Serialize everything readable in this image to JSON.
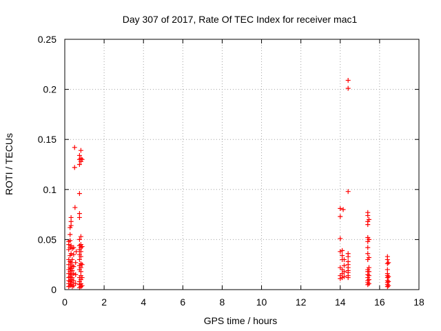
{
  "chart_data": {
    "type": "scatter",
    "title": "Day 307 of 2017, Rate Of TEC Index for receiver mac1",
    "xlabel": "GPS time / hours",
    "ylabel": "ROTI / TECUs",
    "xlim": [
      0,
      18
    ],
    "ylim": [
      0,
      0.25
    ],
    "xticks": [
      0,
      2,
      4,
      6,
      8,
      10,
      12,
      14,
      16,
      18
    ],
    "yticks": [
      0,
      0.05,
      0.1,
      0.15,
      0.2,
      0.25
    ],
    "xtick_labels": [
      "0",
      "2",
      "4",
      "6",
      "8",
      "10",
      "12",
      "14",
      "16",
      "18"
    ],
    "ytick_labels": [
      "0",
      "0.05",
      "0.1",
      "0.15",
      "0.2",
      "0.25"
    ],
    "grid": true,
    "marker": "plus",
    "color": "#ff0000",
    "series": [
      {
        "points": [
          [
            0.2,
            0.003
          ],
          [
            0.2,
            0.006
          ],
          [
            0.2,
            0.009
          ],
          [
            0.2,
            0.012
          ],
          [
            0.2,
            0.016
          ],
          [
            0.2,
            0.02
          ],
          [
            0.2,
            0.025
          ],
          [
            0.2,
            0.03
          ],
          [
            0.2,
            0.04
          ],
          [
            0.2,
            0.045
          ],
          [
            0.2,
            0.048
          ],
          [
            0.27,
            0.004
          ],
          [
            0.27,
            0.008
          ],
          [
            0.27,
            0.013
          ],
          [
            0.27,
            0.018
          ],
          [
            0.27,
            0.022
          ],
          [
            0.27,
            0.028
          ],
          [
            0.27,
            0.034
          ],
          [
            0.27,
            0.042
          ],
          [
            0.27,
            0.049
          ],
          [
            0.27,
            0.055
          ],
          [
            0.27,
            0.062
          ],
          [
            0.32,
            0.005
          ],
          [
            0.32,
            0.01
          ],
          [
            0.32,
            0.015
          ],
          [
            0.32,
            0.021
          ],
          [
            0.32,
            0.027
          ],
          [
            0.32,
            0.036
          ],
          [
            0.32,
            0.044
          ],
          [
            0.32,
            0.064
          ],
          [
            0.32,
            0.068
          ],
          [
            0.32,
            0.072
          ],
          [
            0.38,
            0.003
          ],
          [
            0.38,
            0.007
          ],
          [
            0.38,
            0.012
          ],
          [
            0.38,
            0.019
          ],
          [
            0.38,
            0.024
          ],
          [
            0.38,
            0.03
          ],
          [
            0.38,
            0.041
          ],
          [
            0.45,
            0.004
          ],
          [
            0.45,
            0.009
          ],
          [
            0.45,
            0.016
          ],
          [
            0.45,
            0.023
          ],
          [
            0.45,
            0.035
          ],
          [
            0.45,
            0.042
          ],
          [
            0.5,
            0.142
          ],
          [
            0.5,
            0.122
          ],
          [
            0.52,
            0.082
          ],
          [
            0.55,
            0.006
          ],
          [
            0.55,
            0.015
          ],
          [
            0.55,
            0.027
          ],
          [
            0.58,
            0.038
          ],
          [
            0.75,
            0.002
          ],
          [
            0.75,
            0.005
          ],
          [
            0.75,
            0.008
          ],
          [
            0.75,
            0.012
          ],
          [
            0.75,
            0.02
          ],
          [
            0.75,
            0.024
          ],
          [
            0.75,
            0.03
          ],
          [
            0.75,
            0.035
          ],
          [
            0.75,
            0.04
          ],
          [
            0.75,
            0.044
          ],
          [
            0.75,
            0.05
          ],
          [
            0.75,
            0.072
          ],
          [
            0.75,
            0.076
          ],
          [
            0.75,
            0.096
          ],
          [
            0.75,
            0.125
          ],
          [
            0.75,
            0.13
          ],
          [
            0.75,
            0.134
          ],
          [
            0.82,
            0.003
          ],
          [
            0.82,
            0.006
          ],
          [
            0.82,
            0.01
          ],
          [
            0.82,
            0.014
          ],
          [
            0.82,
            0.018
          ],
          [
            0.82,
            0.022
          ],
          [
            0.82,
            0.026
          ],
          [
            0.82,
            0.033
          ],
          [
            0.82,
            0.038
          ],
          [
            0.82,
            0.042
          ],
          [
            0.82,
            0.045
          ],
          [
            0.82,
            0.053
          ],
          [
            0.82,
            0.128
          ],
          [
            0.82,
            0.131
          ],
          [
            0.82,
            0.139
          ],
          [
            0.88,
            0.004
          ],
          [
            0.88,
            0.012
          ],
          [
            0.88,
            0.025
          ],
          [
            0.88,
            0.043
          ],
          [
            0.88,
            0.13
          ],
          [
            14.0,
            0.011
          ],
          [
            14.0,
            0.014
          ],
          [
            14.0,
            0.022
          ],
          [
            14.0,
            0.038
          ],
          [
            14.0,
            0.051
          ],
          [
            14.0,
            0.073
          ],
          [
            14.0,
            0.081
          ],
          [
            14.1,
            0.012
          ],
          [
            14.1,
            0.016
          ],
          [
            14.1,
            0.02
          ],
          [
            14.1,
            0.03
          ],
          [
            14.1,
            0.034
          ],
          [
            14.1,
            0.039
          ],
          [
            14.15,
            0.08
          ],
          [
            14.2,
            0.013
          ],
          [
            14.2,
            0.018
          ],
          [
            14.2,
            0.024
          ],
          [
            14.2,
            0.03
          ],
          [
            14.4,
            0.012
          ],
          [
            14.4,
            0.014
          ],
          [
            14.4,
            0.017
          ],
          [
            14.4,
            0.019
          ],
          [
            14.4,
            0.022
          ],
          [
            14.4,
            0.025
          ],
          [
            14.4,
            0.028
          ],
          [
            14.4,
            0.033
          ],
          [
            14.4,
            0.036
          ],
          [
            14.4,
            0.098
          ],
          [
            14.4,
            0.201
          ],
          [
            14.4,
            0.209
          ],
          [
            15.4,
            0.005
          ],
          [
            15.4,
            0.007
          ],
          [
            15.4,
            0.009
          ],
          [
            15.4,
            0.012
          ],
          [
            15.4,
            0.015
          ],
          [
            15.4,
            0.018
          ],
          [
            15.4,
            0.02
          ],
          [
            15.4,
            0.03
          ],
          [
            15.4,
            0.036
          ],
          [
            15.4,
            0.042
          ],
          [
            15.4,
            0.048
          ],
          [
            15.4,
            0.052
          ],
          [
            15.4,
            0.065
          ],
          [
            15.4,
            0.068
          ],
          [
            15.4,
            0.074
          ],
          [
            15.4,
            0.077
          ],
          [
            15.46,
            0.006
          ],
          [
            15.46,
            0.01
          ],
          [
            15.46,
            0.014
          ],
          [
            15.46,
            0.018
          ],
          [
            15.46,
            0.022
          ],
          [
            15.46,
            0.032
          ],
          [
            15.46,
            0.05
          ],
          [
            15.46,
            0.07
          ],
          [
            16.4,
            0.003
          ],
          [
            16.4,
            0.005
          ],
          [
            16.4,
            0.007
          ],
          [
            16.4,
            0.009
          ],
          [
            16.4,
            0.012
          ],
          [
            16.4,
            0.014
          ],
          [
            16.4,
            0.016
          ],
          [
            16.4,
            0.02
          ],
          [
            16.4,
            0.026
          ],
          [
            16.4,
            0.03
          ],
          [
            16.4,
            0.033
          ],
          [
            16.45,
            0.004
          ],
          [
            16.45,
            0.008
          ],
          [
            16.45,
            0.013
          ],
          [
            16.45,
            0.027
          ]
        ]
      }
    ]
  }
}
